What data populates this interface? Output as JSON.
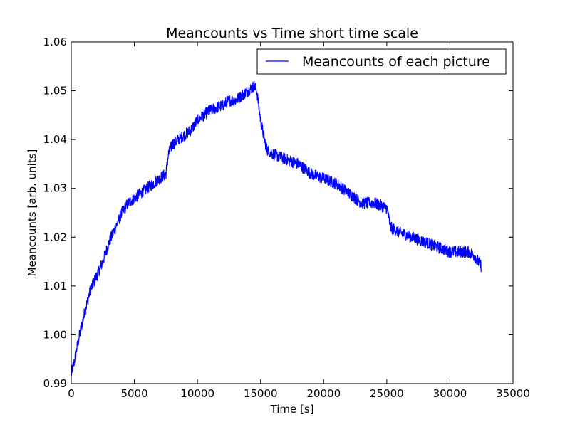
{
  "chart_data": {
    "type": "line",
    "title": "Meancounts vs Time short time scale",
    "xlabel": "Time [s]",
    "ylabel": "Meancounts [arb. units]",
    "xlim": [
      0,
      35000
    ],
    "ylim": [
      0.99,
      1.06
    ],
    "xticks": [
      0,
      5000,
      10000,
      15000,
      20000,
      25000,
      30000,
      35000
    ],
    "xtick_labels": [
      "0",
      "5000",
      "10000",
      "15000",
      "20000",
      "25000",
      "30000",
      "35000"
    ],
    "yticks": [
      0.99,
      1.0,
      1.01,
      1.02,
      1.03,
      1.04,
      1.05,
      1.06
    ],
    "ytick_labels": [
      "0.99",
      "1.00",
      "1.01",
      "1.02",
      "1.03",
      "1.04",
      "1.05",
      "1.06"
    ],
    "grid": false,
    "legend_position": "top-right",
    "series": [
      {
        "name": "Meancounts of each picture",
        "color": "#0000ff",
        "noise": 0.0012,
        "x": [
          0,
          200,
          500,
          1000,
          1500,
          2000,
          2500,
          3000,
          3500,
          4000,
          4500,
          5000,
          5500,
          6000,
          6500,
          7000,
          7500,
          7700,
          8000,
          8500,
          9000,
          9500,
          10000,
          10500,
          11000,
          11500,
          12000,
          12500,
          13000,
          13500,
          14000,
          14500,
          14700,
          15000,
          15300,
          15500,
          16000,
          17000,
          18000,
          19000,
          20000,
          21000,
          22000,
          23000,
          24000,
          25000,
          25300,
          26000,
          27000,
          28000,
          29000,
          30000,
          31000,
          31500,
          32000,
          32500
        ],
        "y": [
          0.992,
          0.994,
          0.998,
          1.004,
          1.009,
          1.012,
          1.015,
          1.019,
          1.022,
          1.025,
          1.027,
          1.028,
          1.029,
          1.03,
          1.031,
          1.032,
          1.033,
          1.037,
          1.039,
          1.04,
          1.041,
          1.042,
          1.044,
          1.045,
          1.046,
          1.0465,
          1.047,
          1.048,
          1.048,
          1.049,
          1.05,
          1.051,
          1.05,
          1.044,
          1.04,
          1.038,
          1.037,
          1.036,
          1.035,
          1.033,
          1.032,
          1.031,
          1.029,
          1.027,
          1.027,
          1.026,
          1.022,
          1.021,
          1.02,
          1.019,
          1.018,
          1.017,
          1.017,
          1.017,
          1.016,
          1.014
        ]
      }
    ]
  }
}
